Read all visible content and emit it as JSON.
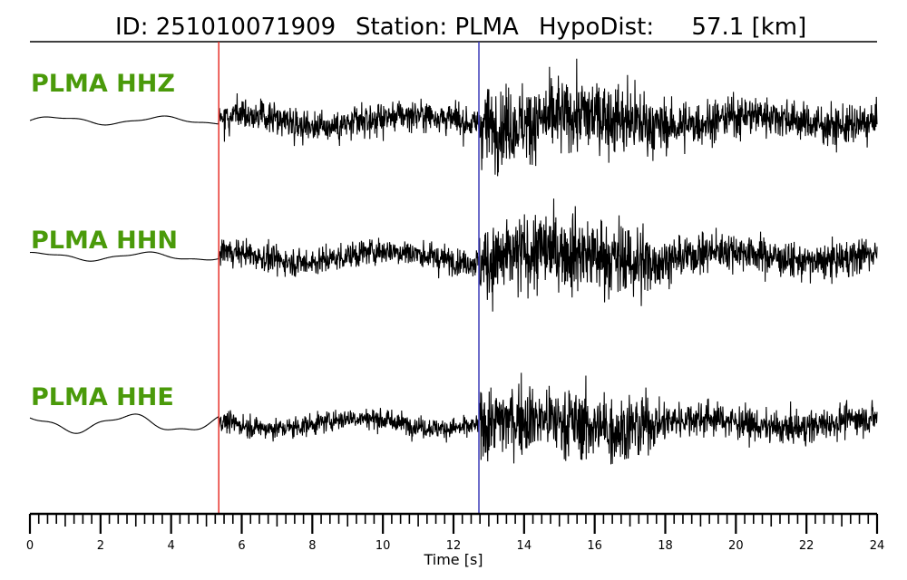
{
  "title": {
    "id_text": "ID: 251010071909",
    "station_text": "Station: PLMA",
    "dist_text": "HypoDist:     57.1 [km]"
  },
  "colors": {
    "label": "#4a9a0a",
    "trace": "#000000",
    "p_pick": "#e8302a",
    "s_pick": "#3a3ab8",
    "axis": "#000000"
  },
  "chart_data": {
    "type": "line",
    "title": "ID: 251010071909   Station: PLMA   HypoDist:     57.1 [km]",
    "xlabel": "Time [s]",
    "ylabel": "",
    "xlim": [
      0,
      24
    ],
    "x_ticks": [
      0,
      2,
      4,
      6,
      8,
      10,
      12,
      14,
      16,
      18,
      20,
      22,
      24
    ],
    "x_minor_step": 0.25,
    "grid": false,
    "picks": [
      {
        "name": "P",
        "time": 5.35,
        "color": "#e8302a"
      },
      {
        "name": "S",
        "time": 12.72,
        "color": "#3a3ab8"
      }
    ],
    "series": [
      {
        "name": "PLMA HHZ",
        "segments": [
          {
            "t0": 0.0,
            "t1": 5.35,
            "amp": 0.05
          },
          {
            "t0": 5.35,
            "t1": 12.72,
            "amp": 0.42
          },
          {
            "t0": 12.72,
            "t1": 17.5,
            "amp": 1.0
          },
          {
            "t0": 17.5,
            "t1": 24.0,
            "amp": 0.5
          }
        ]
      },
      {
        "name": "PLMA HHN",
        "segments": [
          {
            "t0": 0.0,
            "t1": 5.35,
            "amp": 0.05
          },
          {
            "t0": 5.35,
            "t1": 12.72,
            "amp": 0.35
          },
          {
            "t0": 12.72,
            "t1": 17.5,
            "amp": 1.0
          },
          {
            "t0": 17.5,
            "t1": 24.0,
            "amp": 0.45
          }
        ]
      },
      {
        "name": "PLMA HHE",
        "segments": [
          {
            "t0": 0.0,
            "t1": 5.35,
            "amp": 0.12
          },
          {
            "t0": 5.35,
            "t1": 12.72,
            "amp": 0.3
          },
          {
            "t0": 12.72,
            "t1": 17.5,
            "amp": 1.0
          },
          {
            "t0": 17.5,
            "t1": 24.0,
            "amp": 0.45
          }
        ]
      }
    ]
  }
}
